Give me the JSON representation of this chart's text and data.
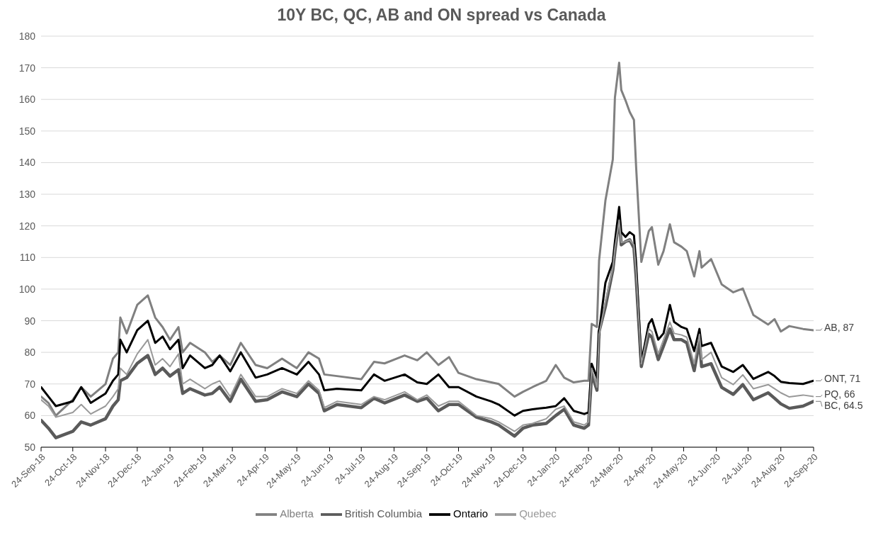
{
  "chart_data": {
    "type": "line",
    "title": "10Y BC, QC, AB and ON spread vs Canada",
    "x": [
      "2018-09-24",
      "2018-10-01",
      "2018-10-08",
      "2018-10-24",
      "2018-11-01",
      "2018-11-10",
      "2018-11-24",
      "2018-12-01",
      "2018-12-06",
      "2018-12-08",
      "2018-12-14",
      "2018-12-24",
      "2019-01-03",
      "2019-01-10",
      "2019-01-17",
      "2019-01-24",
      "2019-02-01",
      "2019-02-05",
      "2019-02-12",
      "2019-02-26",
      "2019-03-05",
      "2019-03-12",
      "2019-03-22",
      "2019-04-01",
      "2019-04-15",
      "2019-04-26",
      "2019-05-10",
      "2019-05-24",
      "2019-06-04",
      "2019-06-14",
      "2019-06-19",
      "2019-07-01",
      "2019-07-24",
      "2019-08-05",
      "2019-08-15",
      "2019-09-03",
      "2019-09-15",
      "2019-09-24",
      "2019-10-05",
      "2019-10-15",
      "2019-10-24",
      "2019-11-10",
      "2019-11-24",
      "2019-12-01",
      "2019-12-16",
      "2019-12-24",
      "2020-01-02",
      "2020-01-15",
      "2020-01-24",
      "2020-02-01",
      "2020-02-10",
      "2020-02-20",
      "2020-02-24",
      "2020-02-27",
      "2020-03-03",
      "2020-03-05",
      "2020-03-11",
      "2020-03-18",
      "2020-03-20",
      "2020-03-24",
      "2020-03-26",
      "2020-03-30",
      "2020-04-03",
      "2020-04-07",
      "2020-04-09",
      "2020-04-14",
      "2020-04-21",
      "2020-04-24",
      "2020-04-30",
      "2020-05-05",
      "2020-05-11",
      "2020-05-15",
      "2020-05-22",
      "2020-05-27",
      "2020-06-03",
      "2020-06-08",
      "2020-06-10",
      "2020-06-19",
      "2020-06-29",
      "2020-07-10",
      "2020-07-19",
      "2020-07-29",
      "2020-08-12",
      "2020-08-18",
      "2020-08-24",
      "2020-09-01",
      "2020-09-14",
      "2020-09-24"
    ],
    "series": [
      {
        "name": "Alberta",
        "color": "#808080",
        "values": [
          66,
          64,
          60,
          65,
          69,
          66,
          70,
          78,
          80,
          91,
          86,
          95,
          98,
          91,
          88,
          84,
          88,
          80,
          83,
          80,
          77,
          79,
          76,
          83,
          76,
          75,
          78,
          75,
          80,
          78,
          73,
          72.5,
          71.5,
          77,
          76.5,
          79,
          77.5,
          80,
          76,
          78.5,
          73.5,
          71.5,
          70.5,
          70,
          66,
          67.5,
          69,
          71,
          76,
          72,
          70.5,
          71,
          71,
          89,
          88,
          109,
          128,
          141,
          160.6,
          171.6,
          163,
          159.7,
          156,
          153.5,
          139,
          108.6,
          118.3,
          119.6,
          107.7,
          112,
          120.5,
          114.8,
          113.4,
          112,
          104,
          112,
          106.8,
          109.5,
          101.5,
          99,
          100.2,
          91.8,
          88.8,
          90.5,
          86.6,
          88.3,
          87.4,
          87
        ]
      },
      {
        "name": "British Columbia",
        "color": "#5a5a5a",
        "values": [
          58.5,
          56,
          53,
          55,
          58,
          57,
          59,
          63,
          65,
          71,
          72,
          76.5,
          79,
          73,
          75,
          72.5,
          74.5,
          67,
          68.5,
          66.5,
          67,
          69,
          64.5,
          71.5,
          64.5,
          65,
          67.5,
          66,
          70,
          67,
          61.5,
          63.5,
          62.5,
          65.5,
          64,
          66.5,
          64.5,
          65.5,
          61.5,
          63.5,
          63.5,
          59.5,
          58,
          57,
          53.5,
          56,
          57,
          57.5,
          60,
          62,
          57,
          56,
          57,
          73.3,
          68,
          86.6,
          94.5,
          106,
          112,
          122.7,
          114,
          115,
          115.6,
          113,
          104,
          75.5,
          85.7,
          84.8,
          77.7,
          82,
          87.4,
          84,
          84,
          83,
          74.2,
          83.5,
          75.5,
          76.4,
          68.9,
          66.7,
          69.8,
          65,
          67.2,
          65.5,
          63.7,
          62.3,
          63,
          64.5
        ]
      },
      {
        "name": "Ontario",
        "color": "#000000",
        "values": [
          69,
          66,
          63,
          64.5,
          69,
          64,
          67,
          71,
          73,
          84,
          80,
          87,
          90,
          83,
          85,
          81,
          84,
          75,
          79,
          75,
          76,
          79,
          74,
          80,
          72,
          73,
          75,
          73,
          77,
          73,
          68,
          68.5,
          68,
          73,
          71,
          73,
          70.5,
          70,
          73,
          69,
          69,
          66,
          64.5,
          63.5,
          60,
          61.5,
          62,
          62.5,
          63,
          65.5,
          61.5,
          60.5,
          61,
          76.4,
          72,
          86.6,
          102,
          108.6,
          115,
          126,
          118,
          116.5,
          118,
          117,
          108.6,
          76.9,
          89,
          90.5,
          84,
          86,
          95,
          89.6,
          88,
          87.4,
          80.4,
          87.4,
          82,
          83,
          75.5,
          73.8,
          76,
          71.6,
          73.8,
          72.5,
          70.7,
          70.3,
          70,
          71
        ]
      },
      {
        "name": "Quebec",
        "color": "#999999",
        "values": [
          65,
          63,
          59.5,
          61,
          63.5,
          60.5,
          63,
          66,
          68.5,
          75,
          73,
          79.5,
          84,
          76,
          78,
          75.5,
          79.5,
          70,
          71.5,
          68.5,
          70,
          71,
          66,
          73,
          66,
          66,
          68.5,
          67,
          71,
          68,
          62.5,
          64.5,
          63.5,
          66,
          65,
          67.5,
          65,
          66.5,
          63,
          64.5,
          64.5,
          60,
          59,
          58,
          55,
          57,
          57.5,
          59,
          62,
          63,
          58,
          57,
          58,
          75,
          69,
          85.7,
          96,
          106.8,
          113,
          121.8,
          114.8,
          115,
          115.6,
          114,
          106,
          76.4,
          87.4,
          86.6,
          79.5,
          84,
          89.6,
          86,
          85.5,
          84.8,
          76.4,
          85.7,
          77.7,
          80,
          72,
          69.8,
          72.9,
          68.5,
          69.8,
          68.5,
          67.2,
          65.9,
          66.5,
          66
        ]
      }
    ],
    "xlim": [
      "2018-09-24",
      "2020-09-24"
    ],
    "xticks": [
      {
        "value": "2018-09-24",
        "label": "24-Sep-18"
      },
      {
        "value": "2018-10-24",
        "label": "24-Oct-18"
      },
      {
        "value": "2018-11-24",
        "label": "24-Nov-18"
      },
      {
        "value": "2018-12-24",
        "label": "24-Dec-18"
      },
      {
        "value": "2019-01-24",
        "label": "24-Jan-19"
      },
      {
        "value": "2019-02-24",
        "label": "24-Feb-19"
      },
      {
        "value": "2019-03-24",
        "label": "24-Mar-19"
      },
      {
        "value": "2019-04-24",
        "label": "24-Apr-19"
      },
      {
        "value": "2019-05-24",
        "label": "24-May-19"
      },
      {
        "value": "2019-06-24",
        "label": "24-Jun-19"
      },
      {
        "value": "2019-07-24",
        "label": "24-Jul-19"
      },
      {
        "value": "2019-08-24",
        "label": "24-Aug-19"
      },
      {
        "value": "2019-09-24",
        "label": "24-Sep-19"
      },
      {
        "value": "2019-10-24",
        "label": "24-Oct-19"
      },
      {
        "value": "2019-11-24",
        "label": "24-Nov-19"
      },
      {
        "value": "2019-12-24",
        "label": "24-Dec-19"
      },
      {
        "value": "2020-01-24",
        "label": "24-Jan-20"
      },
      {
        "value": "2020-02-24",
        "label": "24-Feb-20"
      },
      {
        "value": "2020-03-24",
        "label": "24-Mar-20"
      },
      {
        "value": "2020-04-24",
        "label": "24-Apr-20"
      },
      {
        "value": "2020-05-24",
        "label": "24-May-20"
      },
      {
        "value": "2020-06-24",
        "label": "24-Jun-20"
      },
      {
        "value": "2020-07-24",
        "label": "24-Jul-20"
      },
      {
        "value": "2020-08-24",
        "label": "24-Aug-20"
      },
      {
        "value": "2020-09-24",
        "label": "24-Sep-20"
      }
    ],
    "ylim": [
      50,
      180
    ],
    "yticks": [
      50,
      60,
      70,
      80,
      90,
      100,
      110,
      120,
      130,
      140,
      150,
      160,
      170,
      180
    ],
    "grid": "y",
    "legend": "bottom",
    "marker": "none",
    "annotations": [
      {
        "text": "AB, 87",
        "x": "2020-09-24",
        "y": 87
      },
      {
        "text": "ONT, 71",
        "x": "2020-09-24",
        "y": 71
      },
      {
        "text": "PQ, 66",
        "x": "2020-09-24",
        "y": 66
      },
      {
        "text": "BC, 64.5",
        "x": "2020-09-24",
        "y": 64.5
      }
    ]
  }
}
